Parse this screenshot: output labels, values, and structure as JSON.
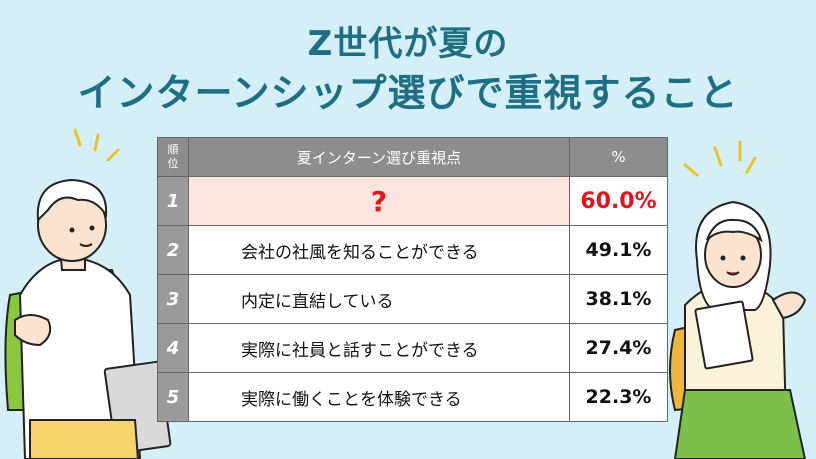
{
  "title": {
    "line1": "Z世代が夏の",
    "line2": "インターンシップ選びで重視すること"
  },
  "table": {
    "headers": {
      "rank": "順\n位",
      "item": "夏インターン選び重視点",
      "percent": "%"
    },
    "rows": [
      {
        "rank": "1",
        "item": "?",
        "percent": "60.0%"
      },
      {
        "rank": "2",
        "item": "会社の社風を知ることができる",
        "percent": "49.1%"
      },
      {
        "rank": "3",
        "item": "内定に直結している",
        "percent": "38.1%"
      },
      {
        "rank": "4",
        "item": "実際に社員と話すことができる",
        "percent": "27.4%"
      },
      {
        "rank": "5",
        "item": "実際に働くことを体験できる",
        "percent": "22.3%"
      }
    ]
  },
  "colors": {
    "background": "#d4eff7",
    "title": "#1f6f82",
    "highlight": "#e0151d",
    "highlight_row": "#fbe5dc",
    "header_gray": "#8d8d8d"
  },
  "illustrations": {
    "left": "male-student-with-backpack-icon",
    "right": "female-student-with-notebook-icon"
  }
}
